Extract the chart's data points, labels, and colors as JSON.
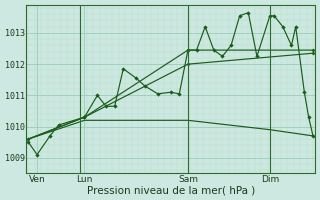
{
  "background_color": "#cce8e0",
  "grid_color_major": "#99ccbb",
  "grid_color_minor": "#bbddcc",
  "line_color": "#1a5c1a",
  "xlabel": "Pression niveau de la mer( hPa )",
  "xlabel_fontsize": 7.5,
  "yticks": [
    1009,
    1010,
    1011,
    1012,
    1013
  ],
  "ylim": [
    1008.5,
    1013.9
  ],
  "xlim": [
    -0.5,
    66.5
  ],
  "day_labels": [
    "Ven",
    "Lun",
    "Sam",
    "Dim"
  ],
  "day_positions": [
    2,
    13,
    37,
    56
  ],
  "vline_positions": [
    12,
    37,
    56
  ],
  "series1_x": [
    0,
    2,
    5,
    7,
    13,
    16,
    18,
    20,
    22,
    25,
    27,
    30,
    33,
    35,
    37,
    39,
    41,
    43,
    45,
    47,
    49,
    51,
    53,
    56,
    57,
    59,
    61,
    62,
    64,
    65,
    66
  ],
  "series1_y": [
    1009.5,
    1009.1,
    1009.7,
    1010.05,
    1010.3,
    1011.0,
    1010.65,
    1010.65,
    1011.85,
    1011.55,
    1011.3,
    1011.05,
    1011.1,
    1011.05,
    1012.45,
    1012.45,
    1013.2,
    1012.45,
    1012.25,
    1012.6,
    1013.55,
    1013.65,
    1012.25,
    1013.55,
    1013.55,
    1013.2,
    1012.6,
    1013.2,
    1011.1,
    1010.3,
    1009.7
  ],
  "series2_x": [
    0,
    13,
    37,
    66
  ],
  "series2_y": [
    1009.6,
    1010.3,
    1012.45,
    1012.45
  ],
  "series3_x": [
    0,
    13,
    37,
    66
  ],
  "series3_y": [
    1009.6,
    1010.3,
    1012.0,
    1012.35
  ],
  "series4_x": [
    0,
    13,
    37,
    56,
    66
  ],
  "series4_y": [
    1009.6,
    1010.2,
    1010.2,
    1009.9,
    1009.7
  ]
}
